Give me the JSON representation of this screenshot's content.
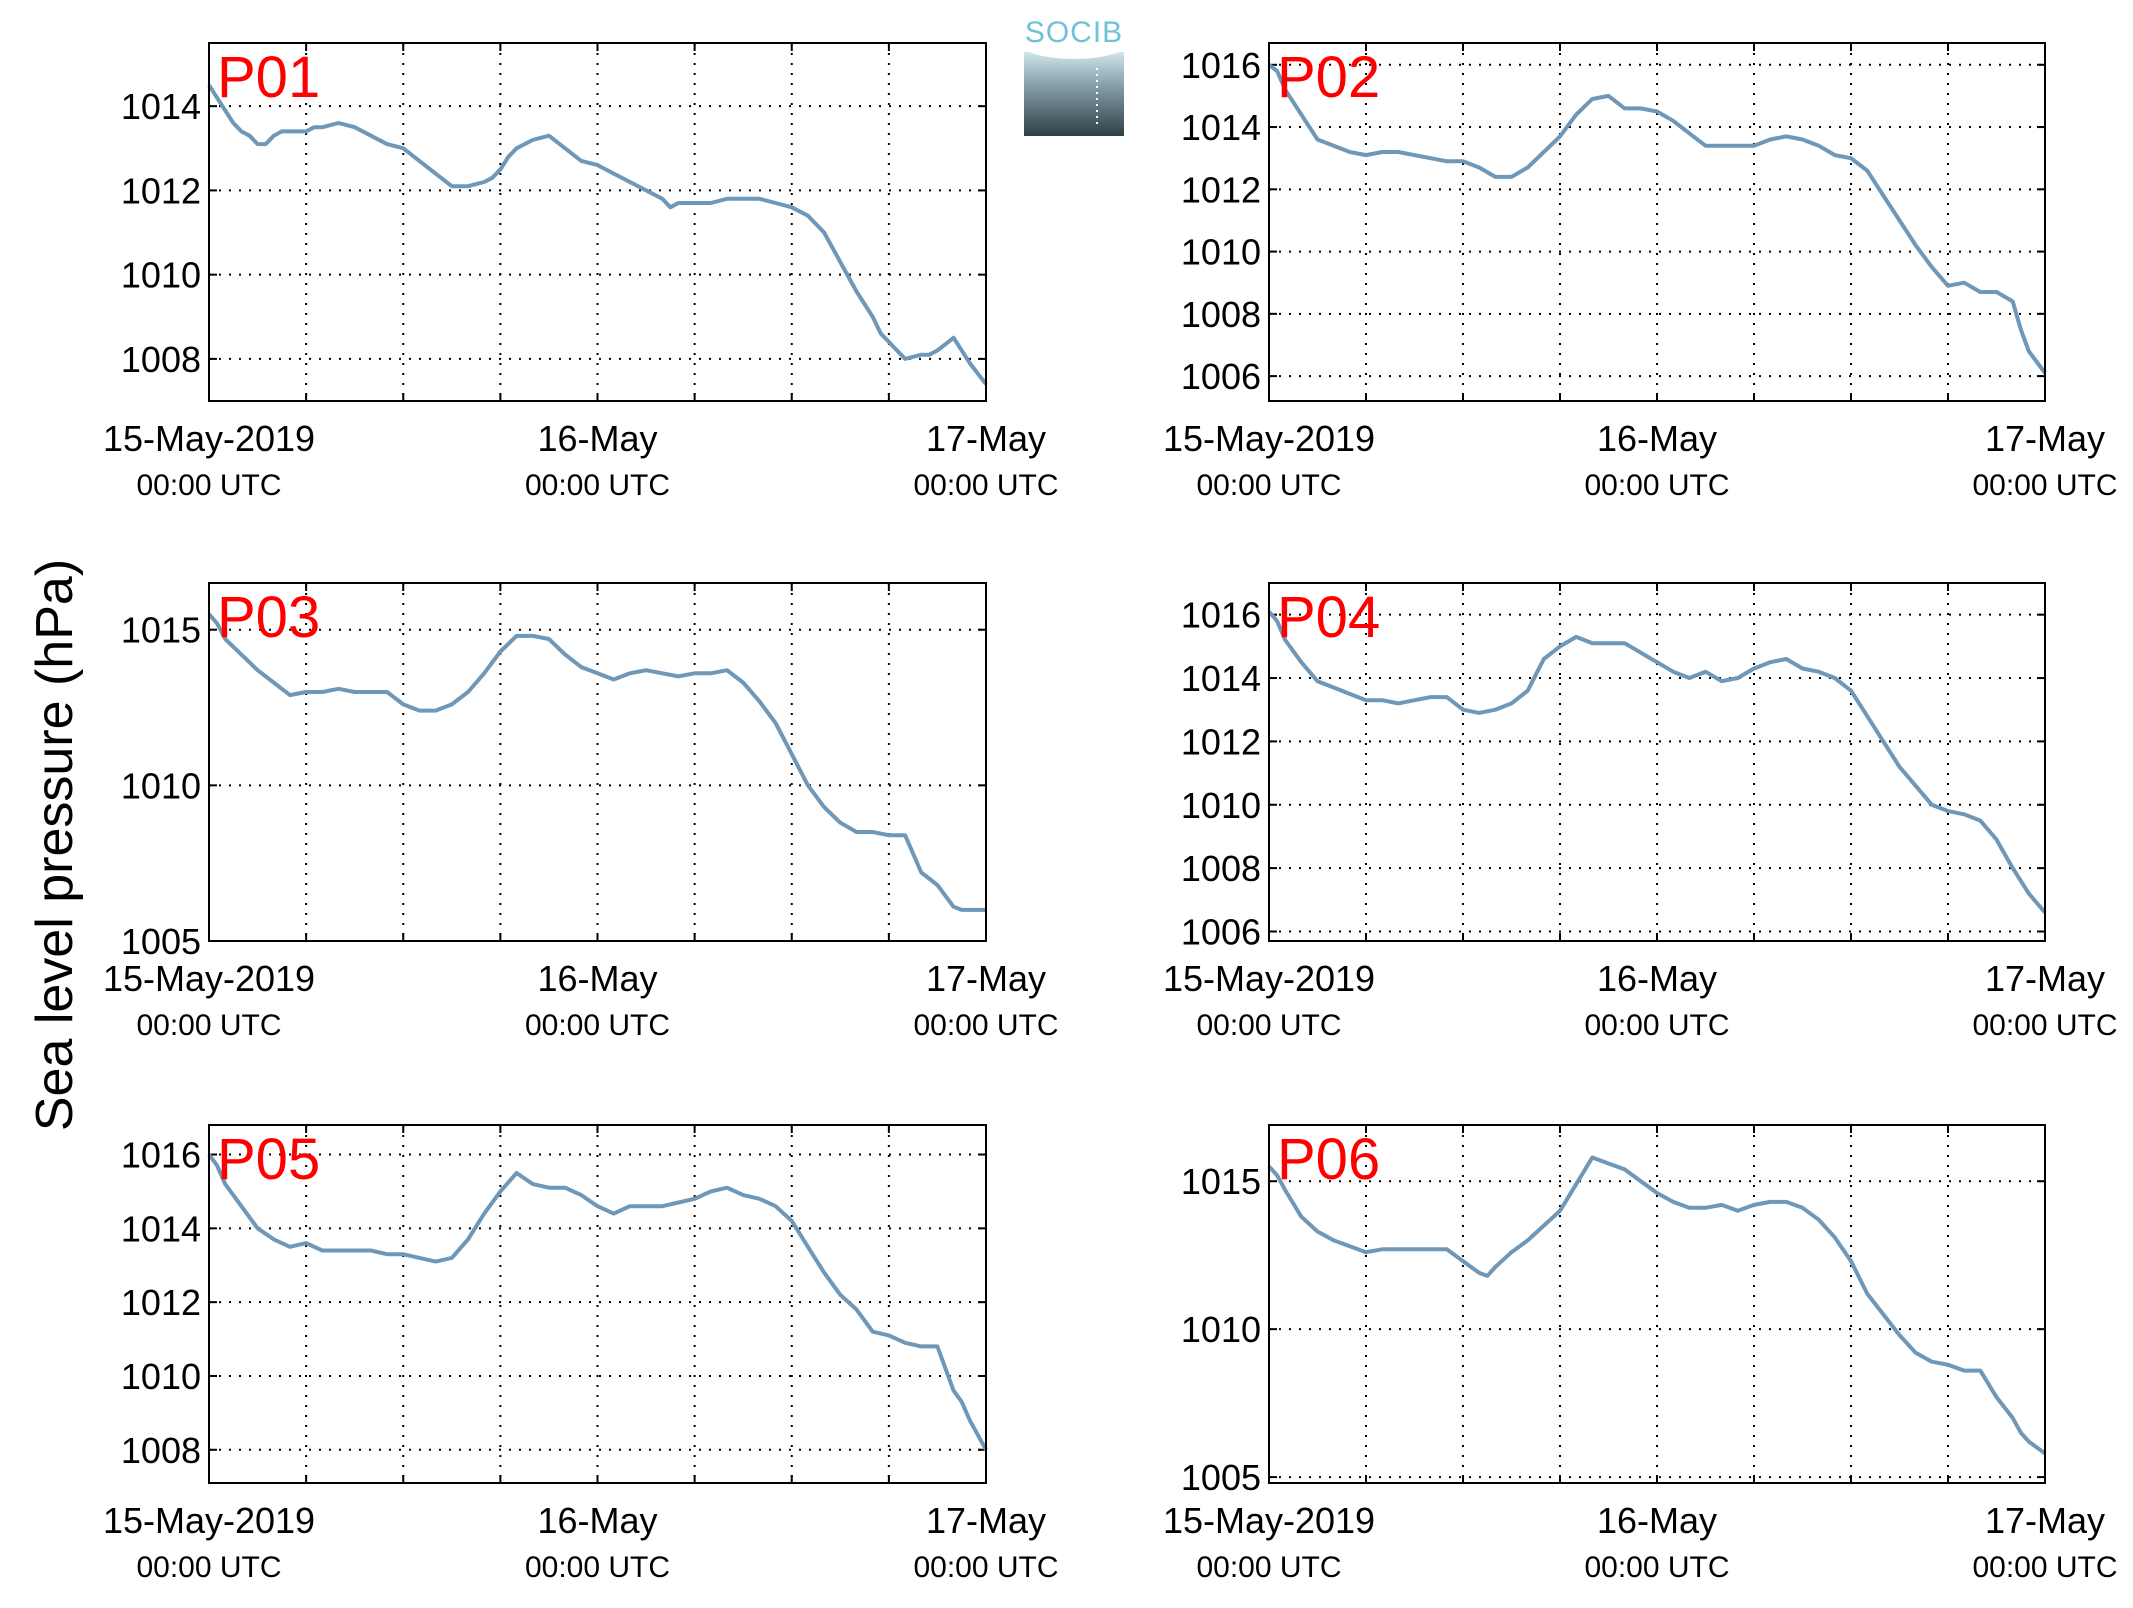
{
  "figure": {
    "ylabel": "Sea level pressure (hPa)",
    "logo_text": "SOCIB",
    "colors": {
      "line": "#6f97b8",
      "label": "#ff0000",
      "axis": "#000000",
      "grid": "#000000"
    }
  },
  "chart_data": [
    {
      "type": "line",
      "label": "P01",
      "xlim": [
        0,
        48
      ],
      "ylim": [
        1007,
        1015.5
      ],
      "yticks": [
        1008,
        1010,
        1012,
        1014
      ],
      "ytick_labels": [
        "1008",
        "1010",
        "1012",
        "1014"
      ],
      "xticks": [
        0,
        24,
        48
      ],
      "xtick_labels": [
        [
          "15-May-2019",
          "00:00 UTC"
        ],
        [
          "16-May",
          "00:00 UTC"
        ],
        [
          "17-May",
          "00:00 UTC"
        ]
      ],
      "grid": true,
      "grid_x": [
        0,
        6,
        12,
        18,
        24,
        30,
        36,
        42,
        48
      ],
      "series": [
        {
          "x": [
            0,
            0.5,
            1,
            1.5,
            2,
            2.5,
            3,
            3.5,
            4,
            4.5,
            5,
            5.5,
            6,
            6.5,
            7,
            8,
            9,
            10,
            11,
            12,
            13,
            14,
            15,
            16,
            17,
            17.5,
            18,
            18.5,
            19,
            20,
            21,
            22,
            23,
            24,
            25,
            26,
            27,
            28,
            28.5,
            29,
            30,
            31,
            32,
            33,
            34,
            35,
            36,
            37,
            38,
            39,
            40,
            41,
            41.5,
            42,
            43,
            44,
            44.5,
            45,
            46,
            47,
            48
          ],
          "y": [
            1014.5,
            1014.2,
            1013.9,
            1013.6,
            1013.4,
            1013.3,
            1013.1,
            1013.1,
            1013.3,
            1013.4,
            1013.4,
            1013.4,
            1013.4,
            1013.5,
            1013.5,
            1013.6,
            1013.5,
            1013.3,
            1013.1,
            1013.0,
            1012.7,
            1012.4,
            1012.1,
            1012.1,
            1012.2,
            1012.3,
            1012.5,
            1012.8,
            1013.0,
            1013.2,
            1013.3,
            1013.0,
            1012.7,
            1012.6,
            1012.4,
            1012.2,
            1012.0,
            1011.8,
            1011.6,
            1011.7,
            1011.7,
            1011.7,
            1011.8,
            1011.8,
            1011.8,
            1011.7,
            1011.6,
            1011.4,
            1011.0,
            1010.3,
            1009.6,
            1009.0,
            1008.6,
            1008.4,
            1008.0,
            1008.1,
            1008.1,
            1008.2,
            1008.5,
            1007.9,
            1007.4
          ]
        }
      ]
    },
    {
      "type": "line",
      "label": "P02",
      "xlim": [
        0,
        48
      ],
      "ylim": [
        1005.2,
        1016.7
      ],
      "yticks": [
        1006,
        1008,
        1010,
        1012,
        1014,
        1016
      ],
      "ytick_labels": [
        "1006",
        "1008",
        "1010",
        "1012",
        "1014",
        "1016"
      ],
      "xticks": [
        0,
        24,
        48
      ],
      "xtick_labels": [
        [
          "15-May-2019",
          "00:00 UTC"
        ],
        [
          "16-May",
          "00:00 UTC"
        ],
        [
          "17-May",
          "00:00 UTC"
        ]
      ],
      "grid": true,
      "grid_x": [
        0,
        6,
        12,
        18,
        24,
        30,
        36,
        42,
        48
      ],
      "series": [
        {
          "x": [
            0,
            0.5,
            1,
            2,
            3,
            4,
            5,
            6,
            7,
            8,
            9,
            10,
            11,
            12,
            13,
            14,
            15,
            16,
            17,
            18,
            19,
            20,
            21,
            22,
            23,
            24,
            25,
            26,
            27,
            28,
            29,
            30,
            31,
            32,
            33,
            34,
            35,
            36,
            37,
            38,
            39,
            40,
            41,
            42,
            43,
            44,
            45,
            46,
            46.5,
            47,
            48
          ],
          "y": [
            1016.0,
            1015.8,
            1015.2,
            1014.4,
            1013.6,
            1013.4,
            1013.2,
            1013.1,
            1013.2,
            1013.2,
            1013.1,
            1013.0,
            1012.9,
            1012.9,
            1012.7,
            1012.4,
            1012.4,
            1012.7,
            1013.2,
            1013.7,
            1014.4,
            1014.9,
            1015.0,
            1014.6,
            1014.6,
            1014.5,
            1014.2,
            1013.8,
            1013.4,
            1013.4,
            1013.4,
            1013.4,
            1013.6,
            1013.7,
            1013.6,
            1013.4,
            1013.1,
            1013.0,
            1012.6,
            1011.8,
            1011.0,
            1010.2,
            1009.5,
            1008.9,
            1009.0,
            1008.7,
            1008.7,
            1008.4,
            1007.5,
            1006.8,
            1006.1
          ]
        }
      ]
    },
    {
      "type": "line",
      "label": "P03",
      "xlim": [
        0,
        48
      ],
      "ylim": [
        1005,
        1016.5
      ],
      "yticks": [
        1005,
        1010,
        1015
      ],
      "ytick_labels": [
        "1005",
        "1010",
        "1015"
      ],
      "xticks": [
        0,
        24,
        48
      ],
      "xtick_labels": [
        [
          "15-May-2019",
          "00:00 UTC"
        ],
        [
          "16-May",
          "00:00 UTC"
        ],
        [
          "17-May",
          "00:00 UTC"
        ]
      ],
      "grid": true,
      "grid_x": [
        0,
        6,
        12,
        18,
        24,
        30,
        36,
        42,
        48
      ],
      "series": [
        {
          "x": [
            0,
            0.5,
            1,
            2,
            3,
            4,
            5,
            6,
            7,
            8,
            9,
            10,
            11,
            12,
            13,
            14,
            15,
            16,
            17,
            18,
            19,
            20,
            21,
            22,
            23,
            24,
            25,
            26,
            27,
            28,
            29,
            30,
            31,
            32,
            33,
            34,
            35,
            36,
            37,
            38,
            39,
            40,
            41,
            42,
            43,
            44,
            45,
            46,
            46.5,
            47,
            48
          ],
          "y": [
            1015.5,
            1015.2,
            1014.7,
            1014.2,
            1013.7,
            1013.3,
            1012.9,
            1013.0,
            1013.0,
            1013.1,
            1013.0,
            1013.0,
            1013.0,
            1012.6,
            1012.4,
            1012.4,
            1012.6,
            1013.0,
            1013.6,
            1014.3,
            1014.8,
            1014.8,
            1014.7,
            1014.2,
            1013.8,
            1013.6,
            1013.4,
            1013.6,
            1013.7,
            1013.6,
            1013.5,
            1013.6,
            1013.6,
            1013.7,
            1013.3,
            1012.7,
            1012.0,
            1011.0,
            1010.0,
            1009.3,
            1008.8,
            1008.5,
            1008.5,
            1008.4,
            1008.4,
            1007.2,
            1006.8,
            1006.1,
            1006.0,
            1006.0,
            1006.0
          ]
        }
      ]
    },
    {
      "type": "line",
      "label": "P04",
      "xlim": [
        0,
        48
      ],
      "ylim": [
        1005.7,
        1017
      ],
      "yticks": [
        1006,
        1008,
        1010,
        1012,
        1014,
        1016
      ],
      "ytick_labels": [
        "1006",
        "1008",
        "1010",
        "1012",
        "1014",
        "1016"
      ],
      "xticks": [
        0,
        24,
        48
      ],
      "xtick_labels": [
        [
          "15-May-2019",
          "00:00 UTC"
        ],
        [
          "16-May",
          "00:00 UTC"
        ],
        [
          "17-May",
          "00:00 UTC"
        ]
      ],
      "grid": true,
      "grid_x": [
        0,
        6,
        12,
        18,
        24,
        30,
        36,
        42,
        48
      ],
      "series": [
        {
          "x": [
            0,
            0.5,
            1,
            2,
            3,
            4,
            5,
            6,
            7,
            8,
            9,
            10,
            11,
            12,
            13,
            14,
            15,
            16,
            17,
            18,
            19,
            20,
            21,
            22,
            23,
            24,
            25,
            26,
            27,
            28,
            29,
            30,
            31,
            32,
            33,
            34,
            35,
            36,
            37,
            38,
            39,
            40,
            41,
            42,
            43,
            44,
            45,
            46,
            46.5,
            47,
            48
          ],
          "y": [
            1016.1,
            1015.8,
            1015.2,
            1014.5,
            1013.9,
            1013.7,
            1013.5,
            1013.3,
            1013.3,
            1013.2,
            1013.3,
            1013.4,
            1013.4,
            1013.0,
            1012.9,
            1013.0,
            1013.2,
            1013.6,
            1014.6,
            1015.0,
            1015.3,
            1015.1,
            1015.1,
            1015.1,
            1014.8,
            1014.5,
            1014.2,
            1014.0,
            1014.2,
            1013.9,
            1014.0,
            1014.3,
            1014.5,
            1014.6,
            1014.3,
            1014.2,
            1014.0,
            1013.6,
            1012.8,
            1012.0,
            1011.2,
            1010.6,
            1010.0,
            1009.8,
            1009.7,
            1009.5,
            1008.9,
            1008.0,
            1007.6,
            1007.2,
            1006.6
          ]
        }
      ]
    },
    {
      "type": "line",
      "label": "P05",
      "xlim": [
        0,
        48
      ],
      "ylim": [
        1007.1,
        1016.8
      ],
      "yticks": [
        1008,
        1010,
        1012,
        1014,
        1016
      ],
      "ytick_labels": [
        "1008",
        "1010",
        "1012",
        "1014",
        "1016"
      ],
      "xticks": [
        0,
        24,
        48
      ],
      "xtick_labels": [
        [
          "15-May-2019",
          "00:00 UTC"
        ],
        [
          "16-May",
          "00:00 UTC"
        ],
        [
          "17-May",
          "00:00 UTC"
        ]
      ],
      "grid": true,
      "grid_x": [
        0,
        6,
        12,
        18,
        24,
        30,
        36,
        42,
        48
      ],
      "series": [
        {
          "x": [
            0,
            0.5,
            1,
            2,
            3,
            4,
            5,
            6,
            7,
            8,
            9,
            10,
            11,
            12,
            13,
            14,
            15,
            16,
            17,
            18,
            19,
            20,
            21,
            22,
            23,
            24,
            25,
            26,
            27,
            28,
            29,
            30,
            31,
            32,
            33,
            34,
            35,
            36,
            37,
            38,
            39,
            40,
            41,
            42,
            43,
            44,
            45,
            46,
            46.5,
            47,
            48
          ],
          "y": [
            1016.0,
            1015.7,
            1015.2,
            1014.6,
            1014.0,
            1013.7,
            1013.5,
            1013.6,
            1013.4,
            1013.4,
            1013.4,
            1013.4,
            1013.3,
            1013.3,
            1013.2,
            1013.1,
            1013.2,
            1013.7,
            1014.4,
            1015.0,
            1015.5,
            1015.2,
            1015.1,
            1015.1,
            1014.9,
            1014.6,
            1014.4,
            1014.6,
            1014.6,
            1014.6,
            1014.7,
            1014.8,
            1015.0,
            1015.1,
            1014.9,
            1014.8,
            1014.6,
            1014.2,
            1013.5,
            1012.8,
            1012.2,
            1011.8,
            1011.2,
            1011.1,
            1010.9,
            1010.8,
            1010.8,
            1009.6,
            1009.3,
            1008.8,
            1008.0
          ]
        }
      ]
    },
    {
      "type": "line",
      "label": "P06",
      "xlim": [
        0,
        48
      ],
      "ylim": [
        1004.8,
        1016.9
      ],
      "yticks": [
        1005,
        1010,
        1015
      ],
      "ytick_labels": [
        "1005",
        "1010",
        "1015"
      ],
      "xticks": [
        0,
        24,
        48
      ],
      "xtick_labels": [
        [
          "15-May-2019",
          "00:00 UTC"
        ],
        [
          "16-May",
          "00:00 UTC"
        ],
        [
          "17-May",
          "00:00 UTC"
        ]
      ],
      "grid": true,
      "grid_x": [
        0,
        6,
        12,
        18,
        24,
        30,
        36,
        42,
        48
      ],
      "series": [
        {
          "x": [
            0,
            0.5,
            1,
            2,
            3,
            4,
            5,
            6,
            7,
            8,
            9,
            10,
            11,
            12,
            13,
            13.5,
            14,
            15,
            16,
            17,
            18,
            19,
            20,
            21,
            22,
            23,
            24,
            25,
            26,
            27,
            28,
            29,
            30,
            31,
            32,
            33,
            34,
            35,
            36,
            37,
            38,
            39,
            40,
            41,
            42,
            43,
            44,
            45,
            46,
            46.5,
            47,
            48
          ],
          "y": [
            1015.5,
            1015.2,
            1014.7,
            1013.8,
            1013.3,
            1013.0,
            1012.8,
            1012.6,
            1012.7,
            1012.7,
            1012.7,
            1012.7,
            1012.7,
            1012.3,
            1011.9,
            1011.8,
            1012.1,
            1012.6,
            1013.0,
            1013.5,
            1014.0,
            1014.9,
            1015.8,
            1015.6,
            1015.4,
            1015.0,
            1014.6,
            1014.3,
            1014.1,
            1014.1,
            1014.2,
            1014.0,
            1014.2,
            1014.3,
            1014.3,
            1014.1,
            1013.7,
            1013.1,
            1012.3,
            1011.2,
            1010.5,
            1009.8,
            1009.2,
            1008.9,
            1008.8,
            1008.6,
            1008.6,
            1007.7,
            1007.0,
            1006.5,
            1006.2,
            1005.8
          ]
        }
      ]
    }
  ]
}
